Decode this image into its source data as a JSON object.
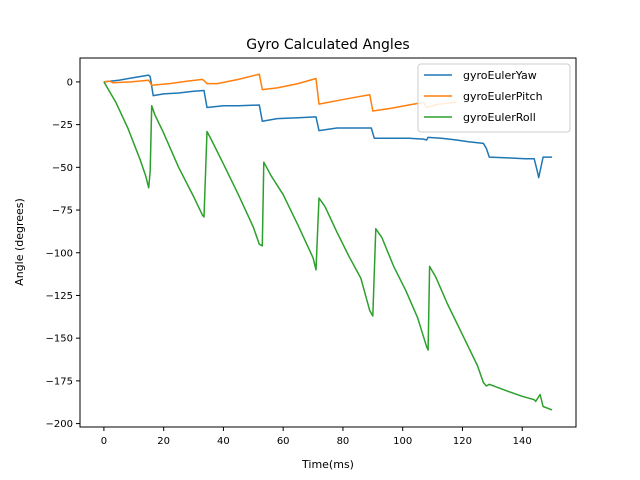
{
  "chart_data": {
    "type": "line",
    "title": "Gyro Calculated Angles",
    "xlabel": "Time(ms)",
    "ylabel": "Angle (degrees)",
    "xlim": [
      -8,
      158
    ],
    "ylim": [
      -202,
      14
    ],
    "xticks": [
      0,
      20,
      40,
      60,
      80,
      100,
      120,
      140
    ],
    "yticks": [
      0,
      -25,
      -50,
      -75,
      -100,
      -125,
      -150,
      -175,
      -200
    ],
    "grid": false,
    "legend": "top-right",
    "series": [
      {
        "name": "gyroEulerYaw",
        "color": "#1f77b4",
        "points": [
          [
            0,
            0
          ],
          [
            5,
            1
          ],
          [
            10,
            2.5
          ],
          [
            15,
            4
          ],
          [
            15.5,
            3
          ],
          [
            16.5,
            -8
          ],
          [
            20,
            -7
          ],
          [
            25,
            -6.5
          ],
          [
            30,
            -5.5
          ],
          [
            33.5,
            -5
          ],
          [
            34.5,
            -15
          ],
          [
            40,
            -14
          ],
          [
            45,
            -14
          ],
          [
            52,
            -13.5
          ],
          [
            53,
            -23
          ],
          [
            58,
            -21.5
          ],
          [
            65,
            -21
          ],
          [
            71,
            -20.5
          ],
          [
            72,
            -28.5
          ],
          [
            78,
            -27
          ],
          [
            85,
            -27
          ],
          [
            89.5,
            -27
          ],
          [
            90.5,
            -33
          ],
          [
            96,
            -33
          ],
          [
            102,
            -33
          ],
          [
            107,
            -33.5
          ],
          [
            108,
            -34
          ],
          [
            108.5,
            -32.5
          ],
          [
            113,
            -33
          ],
          [
            118,
            -34
          ],
          [
            122,
            -35
          ],
          [
            127,
            -36
          ],
          [
            128,
            -39
          ],
          [
            129,
            -44
          ],
          [
            135,
            -44.5
          ],
          [
            141,
            -45
          ],
          [
            144,
            -45
          ],
          [
            145,
            -52
          ],
          [
            145.5,
            -56
          ],
          [
            147,
            -44
          ],
          [
            150,
            -44
          ]
        ]
      },
      {
        "name": "gyroEulerPitch",
        "color": "#ff7f0e",
        "points": [
          [
            0,
            0
          ],
          [
            2,
            0.5
          ],
          [
            3,
            -0.5
          ],
          [
            9,
            0
          ],
          [
            15,
            1
          ],
          [
            16,
            -2
          ],
          [
            22,
            -1
          ],
          [
            28,
            0.5
          ],
          [
            33,
            1.5
          ],
          [
            34,
            0
          ],
          [
            34.5,
            -1
          ],
          [
            38,
            -1
          ],
          [
            45,
            1.5
          ],
          [
            52,
            4.5
          ],
          [
            53,
            -4.5
          ],
          [
            58,
            -3.5
          ],
          [
            65,
            -1
          ],
          [
            71,
            2
          ],
          [
            72,
            -13
          ],
          [
            78,
            -11
          ],
          [
            84,
            -9
          ],
          [
            89,
            -7.5
          ],
          [
            90,
            -17
          ],
          [
            96,
            -15.5
          ],
          [
            102,
            -13.5
          ],
          [
            107,
            -12
          ],
          [
            108,
            -15
          ],
          [
            112,
            -13
          ],
          [
            118,
            -12
          ]
        ]
      },
      {
        "name": "gyroEulerRoll",
        "color": "#2ca02c",
        "points": [
          [
            0,
            0
          ],
          [
            4,
            -12
          ],
          [
            8,
            -27
          ],
          [
            12,
            -45
          ],
          [
            14,
            -55
          ],
          [
            15,
            -62
          ],
          [
            15.5,
            -52
          ],
          [
            16,
            -14
          ],
          [
            17,
            -19
          ],
          [
            20,
            -30
          ],
          [
            25,
            -50
          ],
          [
            30,
            -67
          ],
          [
            33,
            -78
          ],
          [
            33.5,
            -79
          ],
          [
            34.5,
            -29
          ],
          [
            36,
            -34
          ],
          [
            40,
            -48
          ],
          [
            45,
            -66
          ],
          [
            50,
            -85
          ],
          [
            52,
            -95
          ],
          [
            53,
            -96
          ],
          [
            53.5,
            -47
          ],
          [
            56,
            -55
          ],
          [
            60,
            -66
          ],
          [
            65,
            -84
          ],
          [
            70,
            -103
          ],
          [
            71,
            -110
          ],
          [
            72,
            -68
          ],
          [
            74,
            -73
          ],
          [
            78,
            -88
          ],
          [
            82,
            -102
          ],
          [
            86,
            -115
          ],
          [
            89,
            -134
          ],
          [
            90,
            -137
          ],
          [
            91,
            -86
          ],
          [
            93,
            -91
          ],
          [
            97,
            -108
          ],
          [
            101,
            -122
          ],
          [
            105,
            -138
          ],
          [
            108,
            -155
          ],
          [
            108.5,
            -157
          ],
          [
            109,
            -108
          ],
          [
            111,
            -114
          ],
          [
            115,
            -130
          ],
          [
            120,
            -148
          ],
          [
            125,
            -166
          ],
          [
            127,
            -176
          ],
          [
            128,
            -178
          ],
          [
            129,
            -177
          ],
          [
            135,
            -181
          ],
          [
            140,
            -184
          ],
          [
            144,
            -186
          ],
          [
            144.5,
            -187
          ],
          [
            146,
            -183
          ],
          [
            147,
            -190
          ],
          [
            150,
            -192
          ]
        ]
      }
    ]
  }
}
